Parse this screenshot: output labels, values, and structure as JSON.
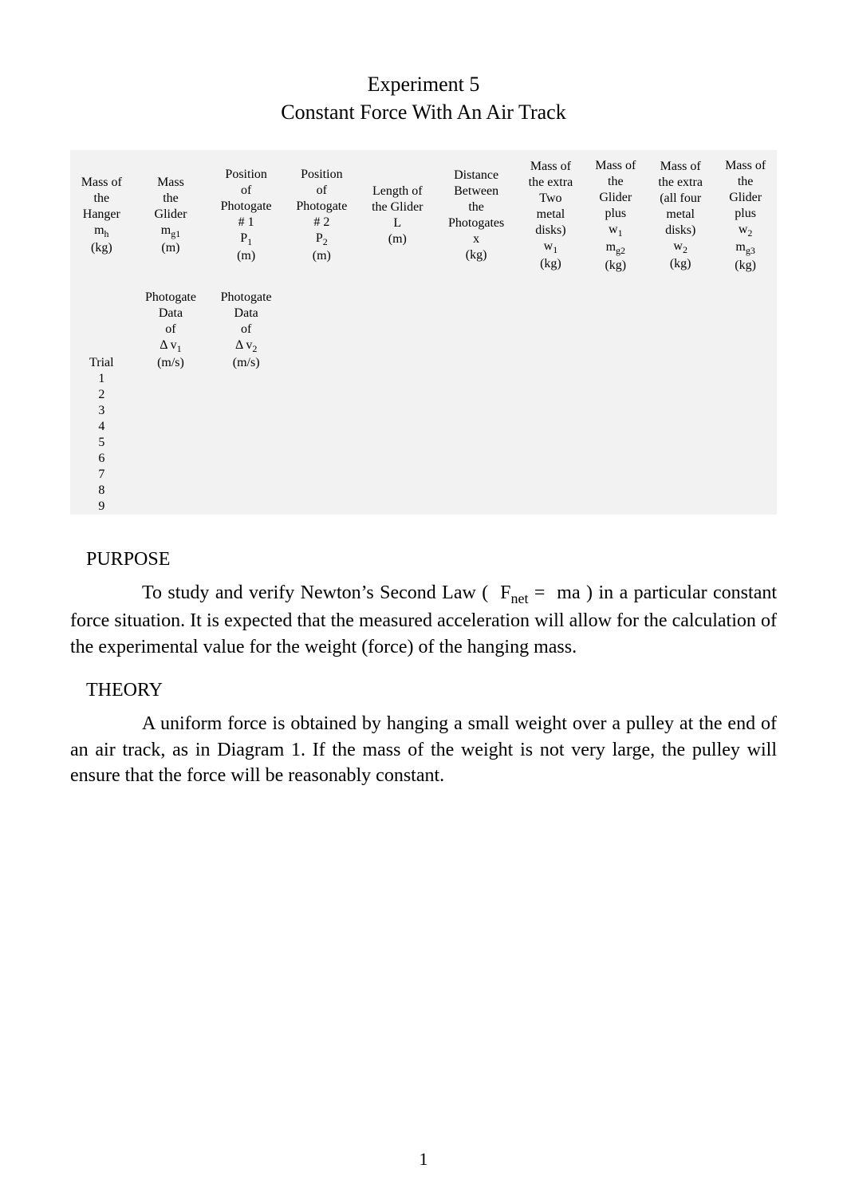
{
  "title": {
    "line1": "Experiment 5",
    "line2": "Constant Force With An Air Track"
  },
  "table": {
    "background_color": "#f2f2f2",
    "font_size_pt": 12,
    "headers": [
      "Mass of\nthe\nHanger\nmₕ\n(kg)",
      "Mass\nthe\nGlider\nm_g1\n(m)",
      "Position\nof\nPhotogate\n# 1\nP₁\n(m)",
      "Position\nof\nPhotogate\n# 2\nP₂\n(m)",
      "Length of\nthe Glider\nL\n(m)",
      "Distance\nBetween\nthe\nPhotogates\nx\n(kg)",
      "Mass of\nthe extra\nTwo\nmetal\ndisks)\nw₁\n(kg)",
      "Mass of\nthe\nGlider\nplus\nw₁\nm_g2\n(kg)",
      "Mass of\nthe extra\n(all four\nmetal\ndisks)\nw₂\n(kg)",
      "Mass of\nthe\nGlider\nplus\nw₂\nm_g3\n(kg)"
    ],
    "sub_headers": {
      "col1": "Photogate\nData\nof\nΔ v₁\n(m/s)",
      "col2": "Photogate\nData\nof\nΔ v₂\n(m/s)"
    },
    "trial_label": "Trial",
    "trials": [
      "1",
      "2",
      "3",
      "4",
      "5",
      "6",
      "7",
      "8",
      "9"
    ]
  },
  "sections": {
    "purpose": {
      "heading": "PURPOSE",
      "text": "To study and verify Newton’s Second Law (  F_net =  ma ) in a particular constant force situation. It is expected that the measured acceleration will allow for the calculation of the experimental value for the weight (force) of the hanging mass."
    },
    "theory": {
      "heading": "THEORY",
      "text": "A uniform force is obtained by hanging a small weight over a pulley at the end of an air track, as in Diagram 1. If the mass of the weight is not very large, the pulley will ensure that the force will be reasonably constant."
    }
  },
  "page_number": "1",
  "typography": {
    "body_font": "Times New Roman",
    "title_fontsize_pt": 20,
    "body_fontsize_pt": 18,
    "text_color": "#000000",
    "page_bg": "#ffffff"
  }
}
